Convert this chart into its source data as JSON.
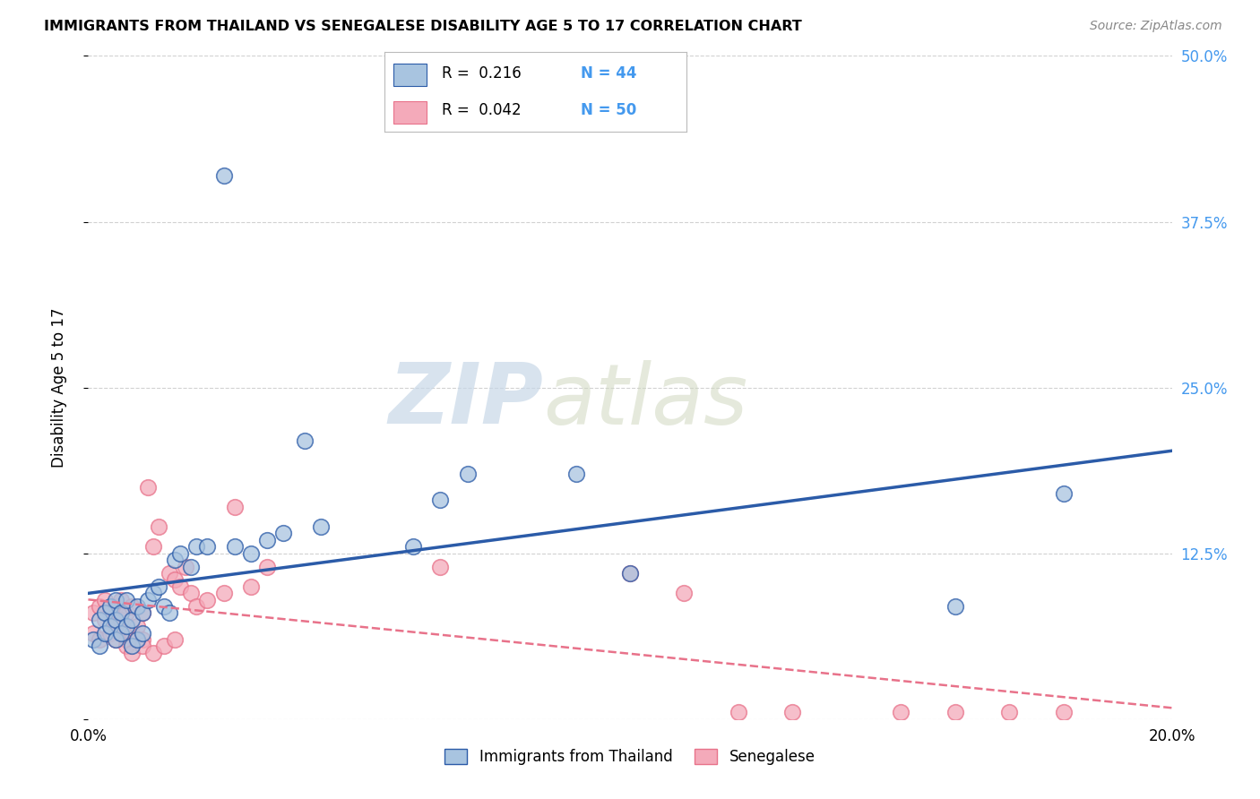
{
  "title": "IMMIGRANTS FROM THAILAND VS SENEGALESE DISABILITY AGE 5 TO 17 CORRELATION CHART",
  "source": "Source: ZipAtlas.com",
  "ylabel": "Disability Age 5 to 17",
  "xlim": [
    0.0,
    0.2
  ],
  "ylim": [
    0.0,
    0.5
  ],
  "xticks": [
    0.0,
    0.05,
    0.1,
    0.15,
    0.2
  ],
  "xticklabels": [
    "0.0%",
    "",
    "",
    "",
    "20.0%"
  ],
  "yticks": [
    0.0,
    0.125,
    0.25,
    0.375,
    0.5
  ],
  "yticklabels": [
    "",
    "12.5%",
    "25.0%",
    "37.5%",
    "50.0%"
  ],
  "legend_label1": "Immigrants from Thailand",
  "legend_label2": "Senegalese",
  "legend_R1": "R =  0.216",
  "legend_N1": "N = 44",
  "legend_R2": "R =  0.042",
  "legend_N2": "N = 50",
  "color_blue": "#A8C4E0",
  "color_pink": "#F4AABA",
  "color_blue_line": "#2B5BA8",
  "color_pink_line": "#E8728A",
  "color_trend_blue": "#2B5BA8",
  "color_trend_pink": "#E8728A",
  "background_color": "#FFFFFF",
  "grid_color": "#CCCCCC",
  "thailand_x": [
    0.001,
    0.002,
    0.002,
    0.003,
    0.003,
    0.004,
    0.004,
    0.005,
    0.005,
    0.005,
    0.006,
    0.006,
    0.007,
    0.007,
    0.008,
    0.008,
    0.009,
    0.009,
    0.01,
    0.01,
    0.011,
    0.012,
    0.013,
    0.014,
    0.015,
    0.016,
    0.017,
    0.019,
    0.02,
    0.022,
    0.025,
    0.027,
    0.03,
    0.033,
    0.036,
    0.04,
    0.043,
    0.06,
    0.065,
    0.07,
    0.09,
    0.1,
    0.16,
    0.18
  ],
  "thailand_y": [
    0.06,
    0.055,
    0.075,
    0.065,
    0.08,
    0.07,
    0.085,
    0.06,
    0.075,
    0.09,
    0.065,
    0.08,
    0.07,
    0.09,
    0.055,
    0.075,
    0.06,
    0.085,
    0.065,
    0.08,
    0.09,
    0.095,
    0.1,
    0.085,
    0.08,
    0.12,
    0.125,
    0.115,
    0.13,
    0.13,
    0.41,
    0.13,
    0.125,
    0.135,
    0.14,
    0.21,
    0.145,
    0.13,
    0.165,
    0.185,
    0.185,
    0.11,
    0.085,
    0.17
  ],
  "senegal_x": [
    0.001,
    0.001,
    0.002,
    0.002,
    0.003,
    0.003,
    0.004,
    0.004,
    0.005,
    0.005,
    0.005,
    0.006,
    0.006,
    0.007,
    0.007,
    0.008,
    0.008,
    0.009,
    0.01,
    0.01,
    0.011,
    0.012,
    0.013,
    0.015,
    0.016,
    0.017,
    0.018,
    0.019,
    0.02,
    0.022,
    0.025,
    0.027,
    0.03,
    0.033,
    0.007,
    0.008,
    0.009,
    0.01,
    0.012,
    0.014,
    0.016,
    0.065,
    0.1,
    0.11,
    0.12,
    0.13,
    0.15,
    0.16,
    0.17,
    0.18
  ],
  "senegal_y": [
    0.065,
    0.08,
    0.06,
    0.085,
    0.075,
    0.09,
    0.065,
    0.08,
    0.06,
    0.07,
    0.085,
    0.075,
    0.09,
    0.06,
    0.08,
    0.065,
    0.085,
    0.07,
    0.06,
    0.08,
    0.175,
    0.13,
    0.145,
    0.11,
    0.105,
    0.1,
    0.115,
    0.095,
    0.085,
    0.09,
    0.095,
    0.16,
    0.1,
    0.115,
    0.055,
    0.05,
    0.06,
    0.055,
    0.05,
    0.055,
    0.06,
    0.115,
    0.11,
    0.095,
    0.005,
    0.005,
    0.005,
    0.005,
    0.005,
    0.005
  ]
}
